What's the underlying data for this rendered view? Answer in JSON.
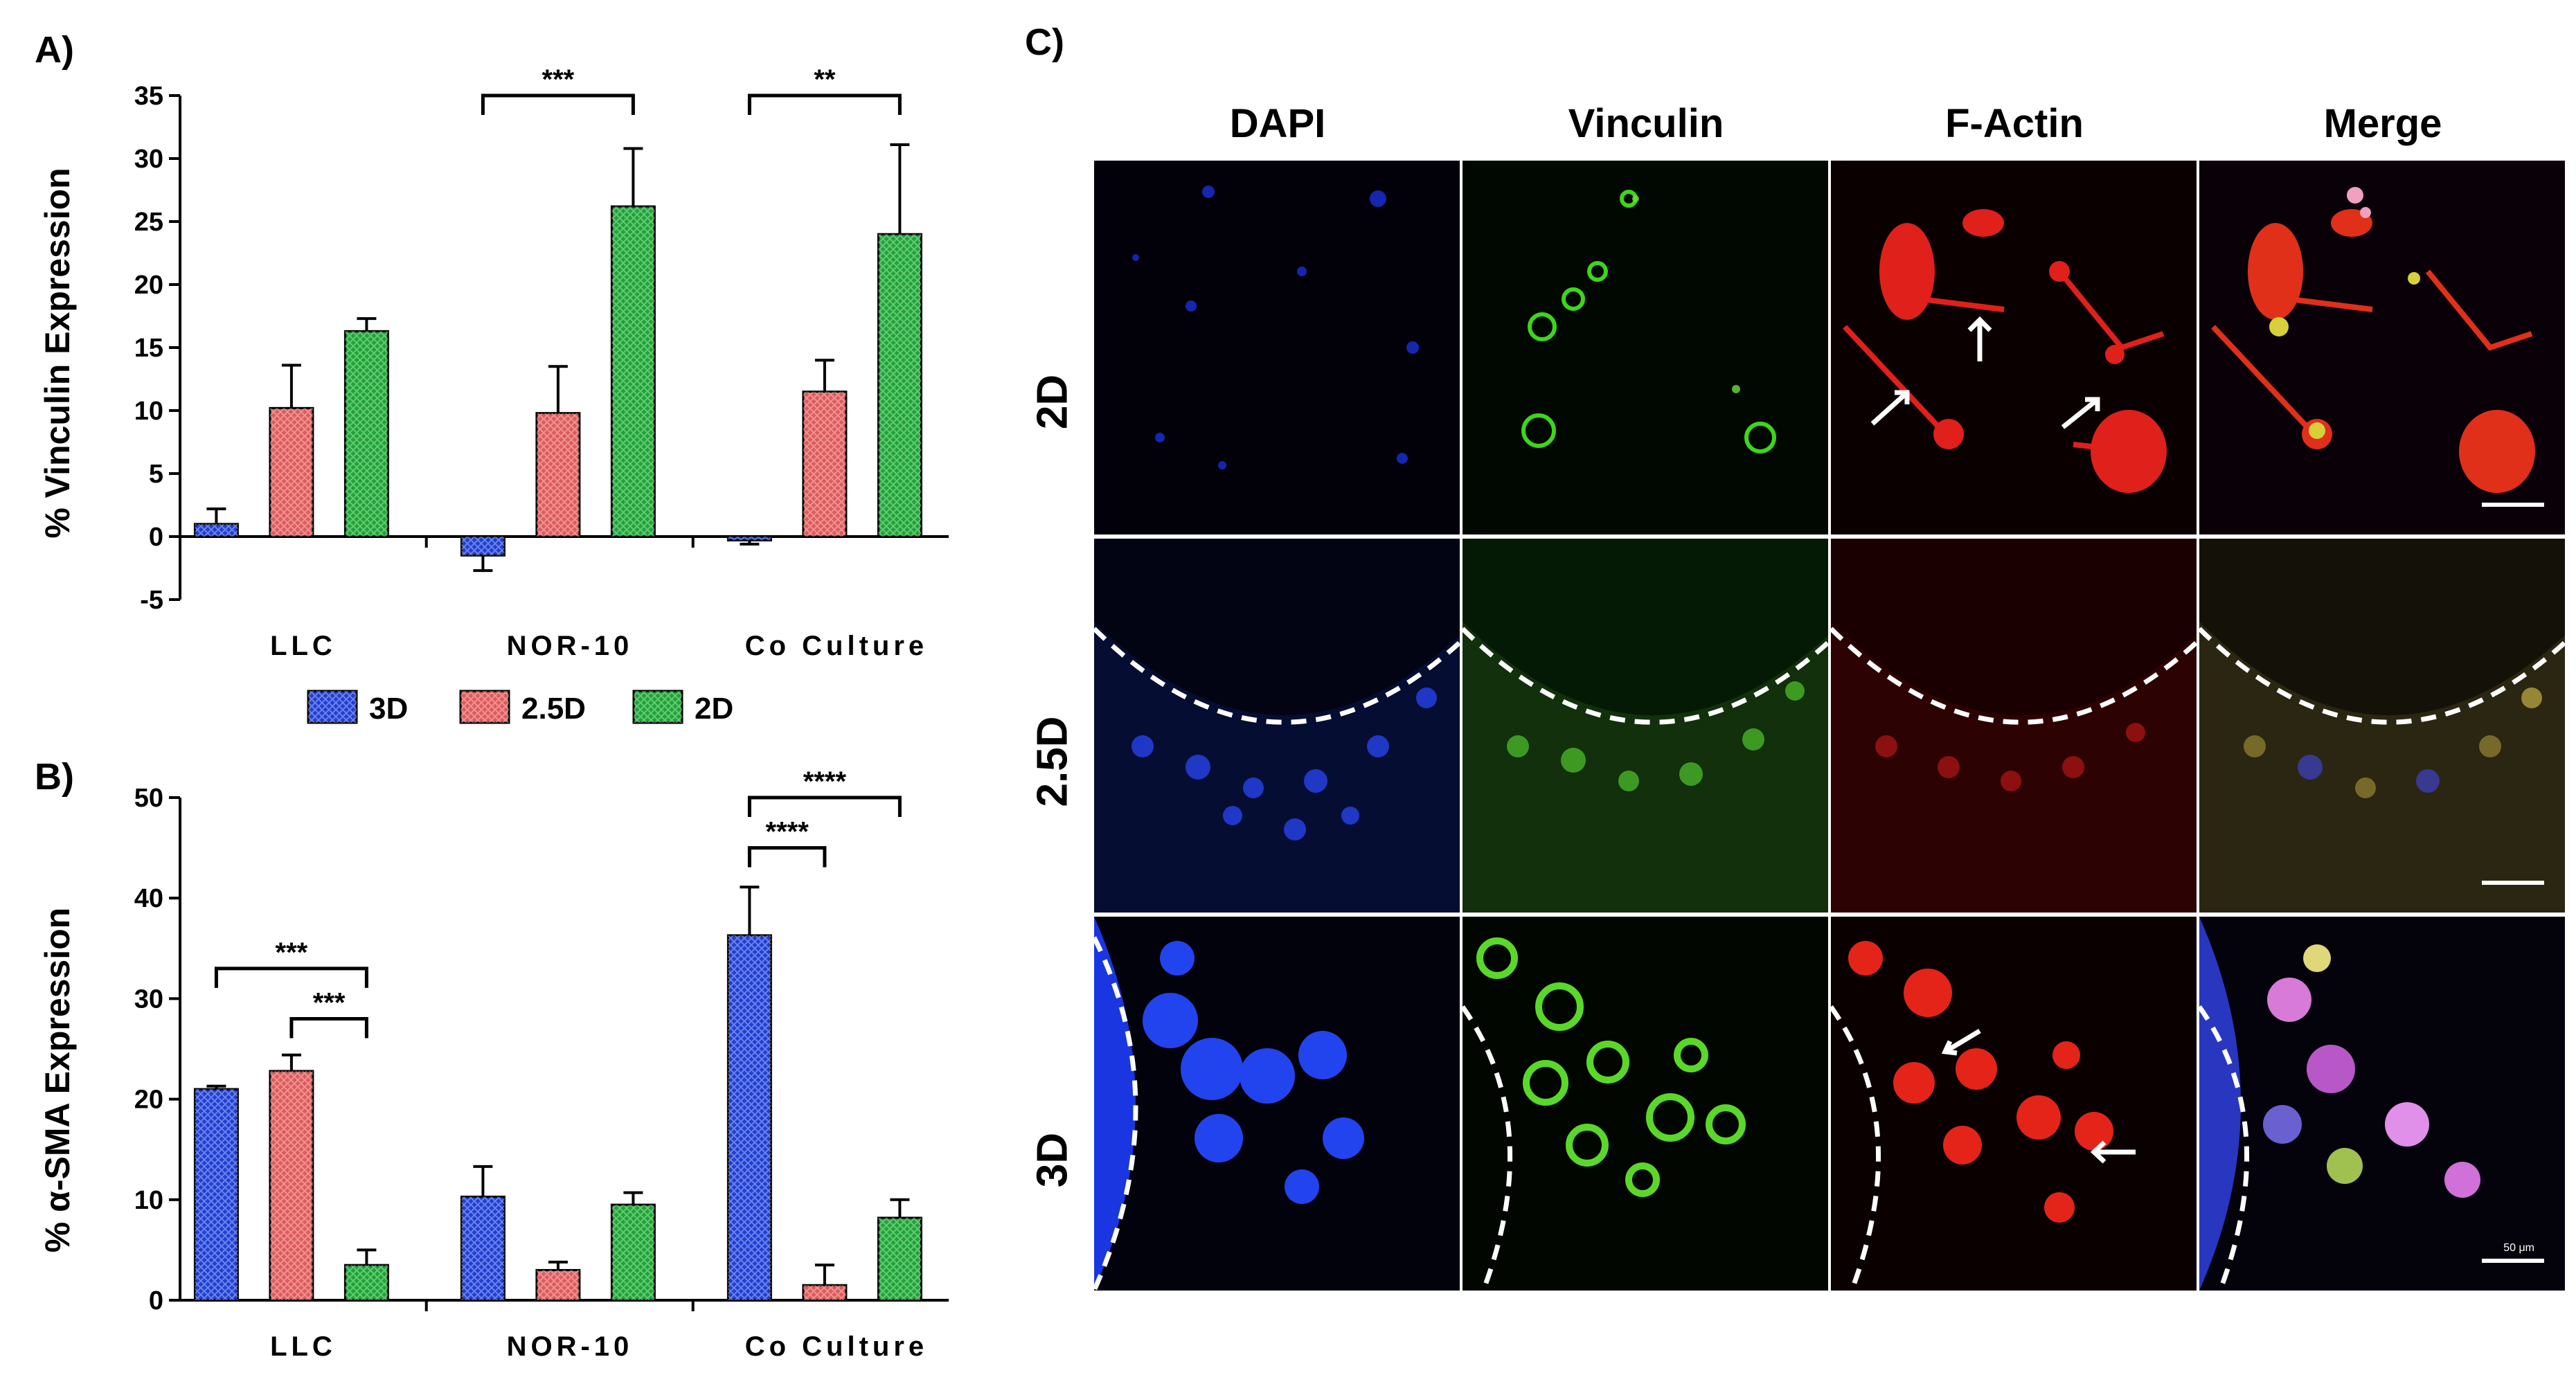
{
  "chart_data": [
    {
      "panel": "A)",
      "type": "bar",
      "ylabel": "% Vinculin Expression",
      "ylim": [
        -5,
        35
      ],
      "yticks": [
        "-5",
        "0",
        "5",
        "10",
        "15",
        "20",
        "25",
        "30",
        "35"
      ],
      "yticks_values": [
        -5,
        0,
        5,
        10,
        15,
        20,
        25,
        30,
        35
      ],
      "categories": [
        "LLC",
        "NOR-10",
        "Co Culture"
      ],
      "series": [
        {
          "name": "3D",
          "color": "#1f3fd6",
          "values": [
            1.0,
            -1.5,
            -0.3
          ],
          "errors": [
            1.2,
            1.2,
            0.3
          ]
        },
        {
          "name": "2.5D",
          "color": "#e05a5a",
          "values": [
            10.2,
            9.8,
            11.5
          ],
          "errors": [
            3.4,
            3.7,
            2.5
          ]
        },
        {
          "name": "2D",
          "color": "#1aa632",
          "values": [
            16.3,
            26.2,
            24.0
          ],
          "errors": [
            1.0,
            4.6,
            7.1
          ]
        }
      ],
      "significance": [
        {
          "category": "NOR-10",
          "from": "3D",
          "to": "2D",
          "label": "***",
          "y": 35
        },
        {
          "category": "Co Culture",
          "from": "3D",
          "to": "2D",
          "label": "**",
          "y": 35
        }
      ]
    },
    {
      "panel": "B)",
      "type": "bar",
      "ylabel": "% α-SMA Expression",
      "ylim": [
        0,
        50
      ],
      "yticks": [
        "0",
        "10",
        "20",
        "30",
        "40",
        "50"
      ],
      "yticks_values": [
        0,
        10,
        20,
        30,
        40,
        50
      ],
      "categories": [
        "LLC",
        "NOR-10",
        "Co Culture"
      ],
      "series": [
        {
          "name": "3D",
          "color": "#1f3fd6",
          "values": [
            21.0,
            10.3,
            36.3
          ],
          "errors": [
            0.3,
            3.0,
            4.8
          ]
        },
        {
          "name": "2.5D",
          "color": "#e05a5a",
          "values": [
            22.8,
            3.0,
            1.5
          ],
          "errors": [
            1.6,
            0.8,
            2.0
          ]
        },
        {
          "name": "2D",
          "color": "#1aa632",
          "values": [
            3.5,
            9.5,
            8.2
          ],
          "errors": [
            1.5,
            1.2,
            1.8
          ]
        }
      ],
      "significance": [
        {
          "category": "LLC",
          "from": "3D",
          "to": "2D",
          "label": "***",
          "y": 33
        },
        {
          "category": "LLC",
          "from": "2.5D",
          "to": "2D",
          "label": "***",
          "y": 28
        },
        {
          "category": "Co Culture",
          "from": "3D",
          "to": "2.5D",
          "label": "****",
          "y": 45
        },
        {
          "category": "Co Culture",
          "from": "3D",
          "to": "2D",
          "label": "****",
          "y": 50
        }
      ]
    }
  ],
  "legend": {
    "items": [
      "3D",
      "2.5D",
      "2D"
    ],
    "placement": "between A and B"
  },
  "panelC": {
    "letter": "C)",
    "columns": [
      "DAPI",
      "Vinculin",
      "F-Actin",
      "Merge"
    ],
    "rows": [
      "2D",
      "2.5D",
      "3D"
    ],
    "scale_label": "50 μm"
  }
}
